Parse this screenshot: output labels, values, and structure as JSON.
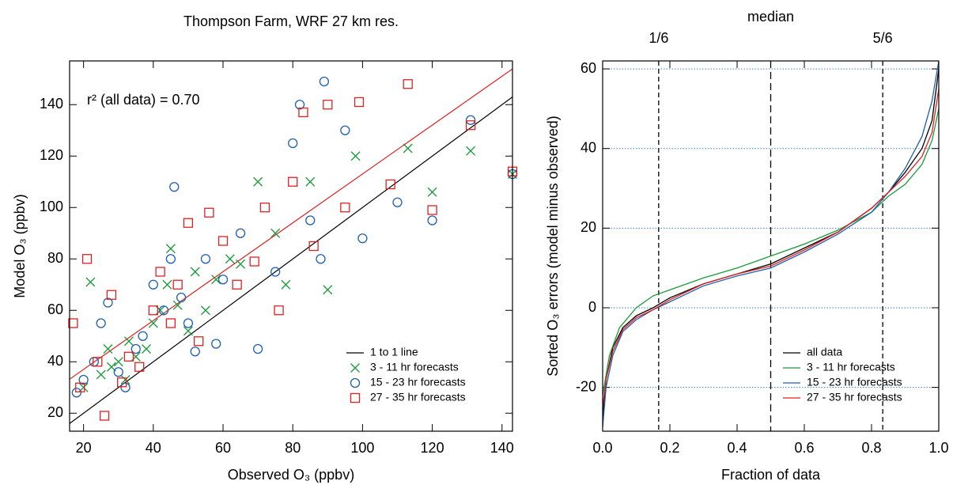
{
  "chart_data": [
    {
      "type": "scatter",
      "title": "Thompson Farm, WRF 27 km res.",
      "annotation": "r² (all data) = 0.70",
      "x_label": "Observed O₃ (ppbv)",
      "y_label": "Model O₃ (ppbv)",
      "xlim": [
        16,
        143
      ],
      "ylim": [
        13,
        157
      ],
      "xticks": [
        20,
        40,
        60,
        80,
        100,
        120,
        140
      ],
      "yticks": [
        20,
        40,
        60,
        80,
        100,
        120,
        140
      ],
      "legend": "lower right",
      "lines": [
        {
          "name": "1 to 1 line",
          "color": "#000000",
          "x": [
            16,
            143
          ],
          "values": [
            16,
            143
          ]
        },
        {
          "color": "#e02020",
          "x": [
            16,
            143
          ],
          "values": [
            33.2,
            153.9
          ]
        }
      ],
      "series": [
        {
          "name": "3 - 11 hr forecasts",
          "color": "#1a9a3a",
          "marker": "x",
          "x": [
            20,
            22,
            25,
            27,
            28,
            30,
            32,
            33,
            35,
            38,
            40,
            42,
            44,
            45,
            47,
            50,
            52,
            55,
            58,
            62,
            65,
            70,
            75,
            78,
            85,
            90,
            98,
            113,
            120,
            131,
            143
          ],
          "values": [
            30,
            71,
            35,
            45,
            38,
            40,
            33,
            48,
            42,
            45,
            55,
            60,
            70,
            84,
            62,
            52,
            75,
            60,
            72,
            80,
            78,
            110,
            90,
            70,
            110,
            68,
            120,
            123,
            106,
            122,
            113
          ]
        },
        {
          "name": "15 - 23 hr forecasts",
          "color": "#1f5fb0",
          "marker": "circle",
          "x": [
            18,
            20,
            23,
            25,
            27,
            30,
            32,
            35,
            37,
            40,
            43,
            45,
            46,
            48,
            50,
            52,
            55,
            58,
            60,
            65,
            70,
            75,
            80,
            82,
            85,
            88,
            89,
            95,
            100,
            110,
            120,
            131,
            143
          ],
          "values": [
            28,
            33,
            40,
            55,
            63,
            36,
            30,
            45,
            50,
            70,
            60,
            80,
            108,
            65,
            55,
            44,
            80,
            47,
            72,
            90,
            45,
            75,
            125,
            140,
            95,
            80,
            149,
            130,
            88,
            102,
            95,
            134,
            113
          ]
        },
        {
          "name": "27 - 35 hr forecasts",
          "color": "#e02020",
          "marker": "square",
          "x": [
            17,
            19,
            21,
            24,
            26,
            28,
            31,
            33,
            36,
            40,
            42,
            45,
            47,
            50,
            53,
            56,
            60,
            64,
            69,
            72,
            76,
            80,
            83,
            86,
            90,
            95,
            99,
            108,
            113,
            120,
            131,
            143
          ],
          "values": [
            55,
            30,
            80,
            40,
            19,
            66,
            32,
            42,
            38,
            60,
            75,
            55,
            70,
            94,
            48,
            98,
            87,
            70,
            79,
            100,
            60,
            110,
            137,
            85,
            140,
            100,
            141,
            109,
            148,
            99,
            132,
            114
          ]
        }
      ]
    },
    {
      "type": "line",
      "x_label": "Fraction of data",
      "y_label": "Sorted O₃ errors (model minus observed)",
      "xlim": [
        0,
        1
      ],
      "ylim": [
        -31,
        62
      ],
      "xticks": [
        {
          "value": 0,
          "label": "0.0"
        },
        0.2,
        0.4,
        0.6,
        0.8,
        {
          "value": 1,
          "label": "1.0"
        }
      ],
      "yticks": [
        -20,
        0,
        20,
        40,
        60
      ],
      "top_ticks": [
        {
          "value": 0.1667,
          "label": "1/6"
        },
        {
          "value": 0.5,
          "label": "median"
        },
        {
          "value": 0.8333,
          "label": "5/6"
        }
      ],
      "grid": true,
      "grid_color": "#3a7fd0",
      "legend": "lower right",
      "series": [
        {
          "name": "all data",
          "color": "#000000",
          "x": [
            0,
            0.01,
            0.03,
            0.06,
            0.1,
            0.15,
            0.2,
            0.3,
            0.4,
            0.5,
            0.6,
            0.7,
            0.8,
            0.85,
            0.9,
            0.95,
            0.98,
            1
          ],
          "values": [
            -28,
            -18,
            -10,
            -5,
            -2,
            0,
            2.5,
            6,
            8.5,
            11,
            15,
            19,
            25,
            29,
            34,
            40,
            47,
            60
          ]
        },
        {
          "name": "3 - 11 hr forecasts",
          "color": "#1a9a3a",
          "x": [
            0,
            0.02,
            0.05,
            0.1,
            0.15,
            0.2,
            0.3,
            0.4,
            0.5,
            0.6,
            0.7,
            0.8,
            0.85,
            0.9,
            0.95,
            0.98,
            1
          ],
          "values": [
            -22,
            -12,
            -5,
            0,
            3,
            4.5,
            7.5,
            10,
            13,
            16,
            19.5,
            24,
            28,
            31,
            36,
            42,
            50
          ]
        },
        {
          "name": "15 - 23 hr forecasts",
          "color": "#1f5fb0",
          "x": [
            0,
            0.01,
            0.03,
            0.06,
            0.1,
            0.15,
            0.2,
            0.3,
            0.4,
            0.5,
            0.6,
            0.7,
            0.8,
            0.85,
            0.9,
            0.95,
            0.98,
            1
          ],
          "values": [
            -30,
            -20,
            -12,
            -6,
            -3,
            -0.5,
            1.5,
            5.5,
            8,
            10,
            14,
            18.5,
            24,
            29,
            35,
            43,
            52,
            62
          ]
        },
        {
          "name": "27 - 35 hr forecasts",
          "color": "#e02020",
          "x": [
            0,
            0.01,
            0.03,
            0.06,
            0.1,
            0.15,
            0.2,
            0.3,
            0.4,
            0.5,
            0.6,
            0.7,
            0.8,
            0.85,
            0.9,
            0.95,
            0.98,
            1
          ],
          "values": [
            -25,
            -18,
            -11,
            -5.5,
            -2.5,
            -0.5,
            2,
            6,
            8.5,
            10.5,
            14.5,
            19,
            25,
            29,
            33,
            38,
            44,
            55
          ]
        }
      ]
    }
  ]
}
